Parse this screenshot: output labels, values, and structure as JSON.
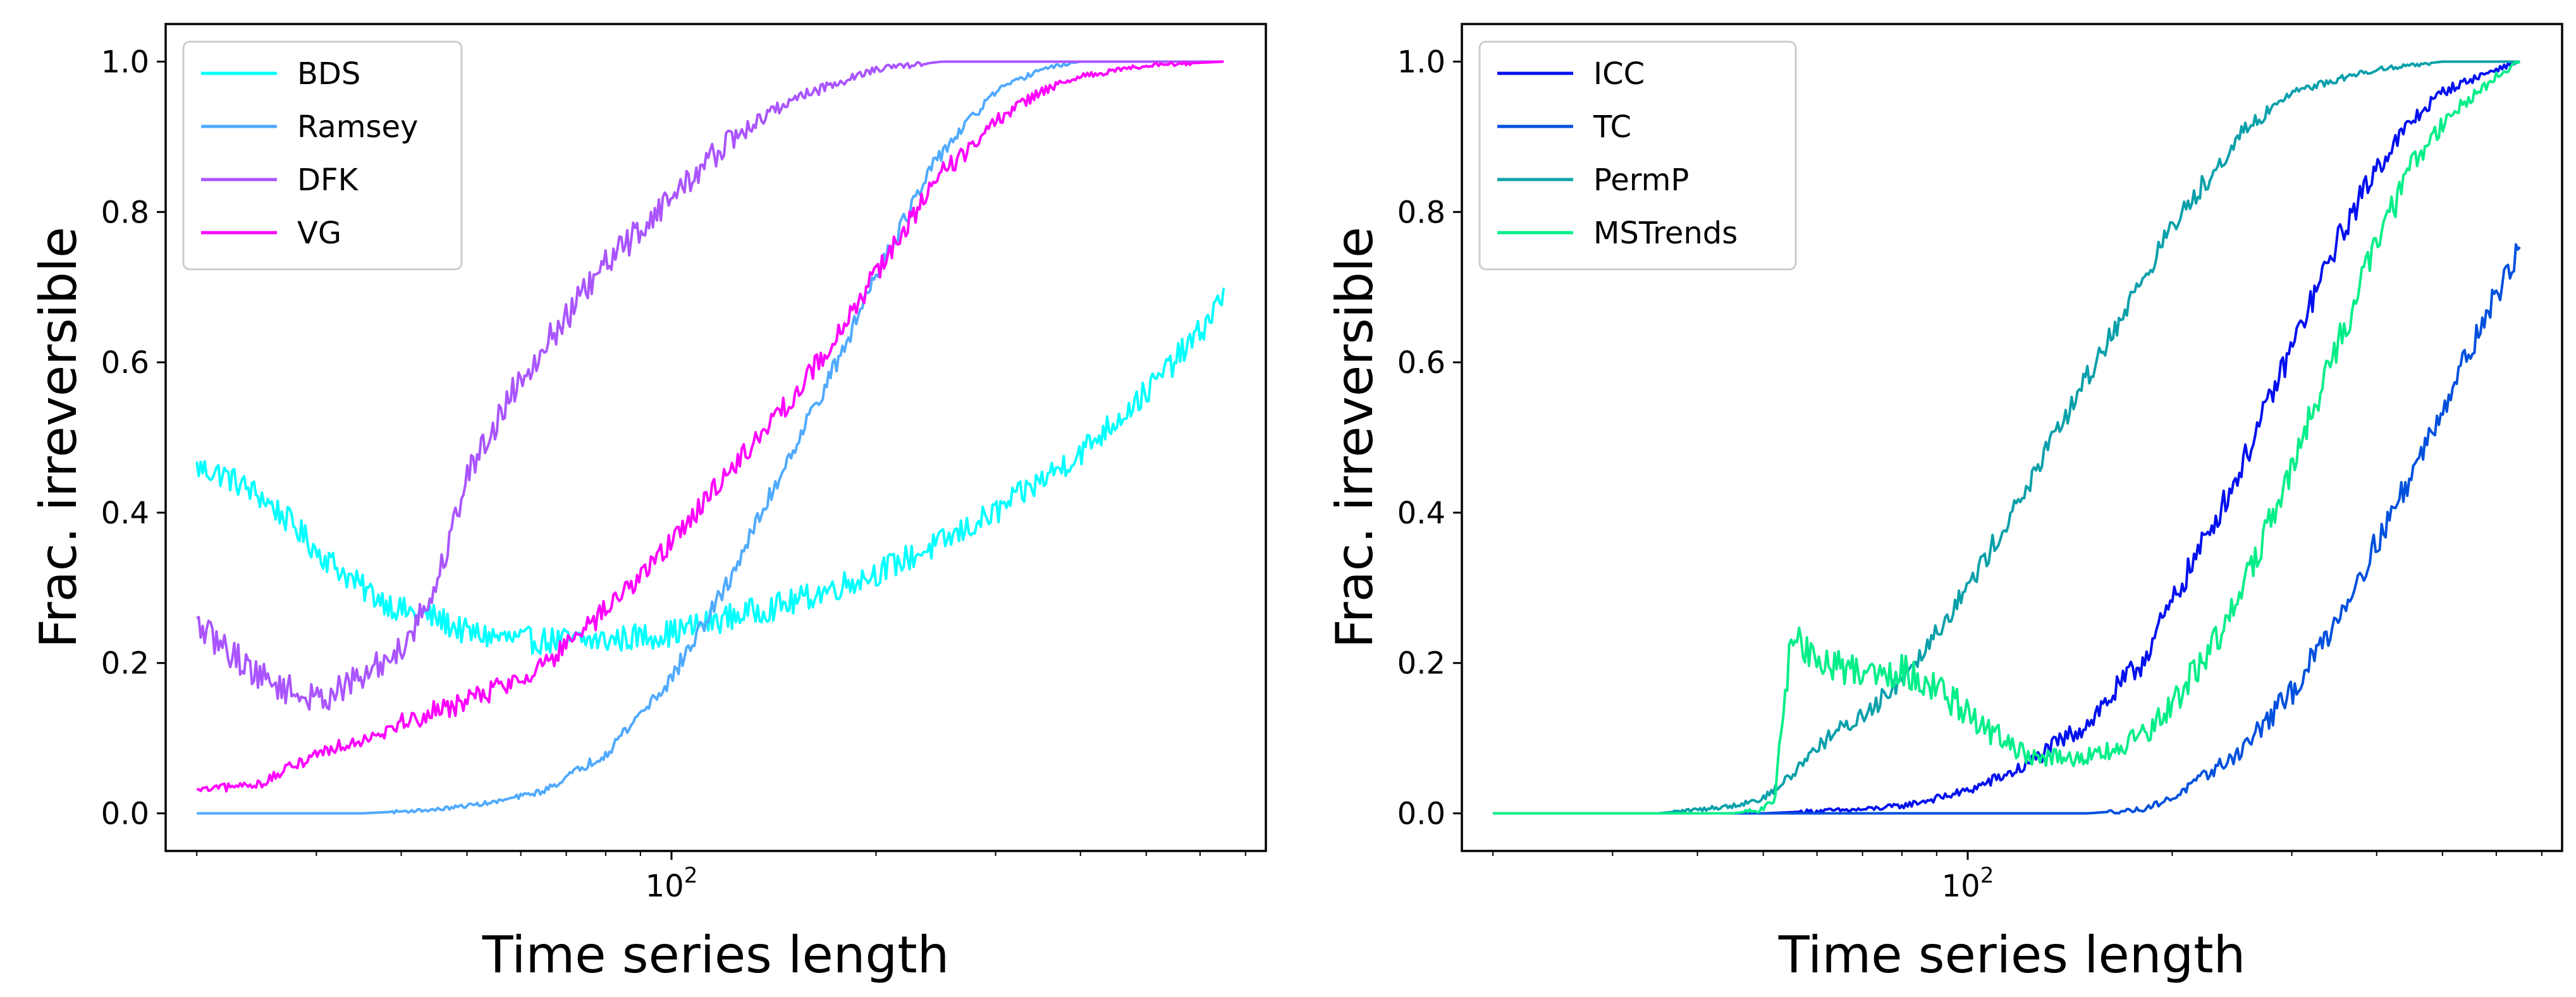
{
  "figure": {
    "title": ""
  },
  "chart_data": [
    {
      "type": "line",
      "panel": "left",
      "title": "",
      "xlabel": "Time series length",
      "ylabel": "Frac. irreversible",
      "xscale": "log",
      "xlim": [
        18,
        750
      ],
      "ylim": [
        -0.05,
        1.05
      ],
      "x_ticks": [
        {
          "value": 100,
          "base": "10",
          "exp": "2"
        }
      ],
      "yticks": [
        {
          "value": 0.0,
          "label": "0.0"
        },
        {
          "value": 0.2,
          "label": "0.2"
        },
        {
          "value": 0.4,
          "label": "0.4"
        },
        {
          "value": 0.6,
          "label": "0.6"
        },
        {
          "value": 0.8,
          "label": "0.8"
        },
        {
          "value": 1.0,
          "label": "1.0"
        }
      ],
      "grid": false,
      "legend_position": "top-left",
      "series": [
        {
          "name": "BDS",
          "color": "#00ffff",
          "noise": 0.018,
          "x": [
            20,
            22,
            25,
            28,
            30,
            35,
            40,
            45,
            50,
            60,
            70,
            80,
            100,
            120,
            150,
            200,
            250,
            300,
            400,
            500,
            600,
            650
          ],
          "y": [
            0.46,
            0.45,
            0.42,
            0.38,
            0.35,
            0.3,
            0.27,
            0.26,
            0.24,
            0.23,
            0.23,
            0.23,
            0.24,
            0.26,
            0.28,
            0.32,
            0.36,
            0.4,
            0.48,
            0.56,
            0.64,
            0.69
          ]
        },
        {
          "name": "Ramsey",
          "color": "#50aaff",
          "noise": 0.012,
          "x": [
            20,
            35,
            45,
            55,
            65,
            80,
            100,
            120,
            150,
            180,
            200,
            250,
            300,
            350,
            400,
            450,
            500,
            600,
            650
          ],
          "y": [
            0.0,
            0.0,
            0.005,
            0.015,
            0.03,
            0.08,
            0.18,
            0.3,
            0.48,
            0.62,
            0.72,
            0.88,
            0.96,
            0.99,
            1.0,
            1.0,
            1.0,
            1.0,
            1.0
          ]
        },
        {
          "name": "DFK",
          "color": "#aa55ff",
          "noise": 0.02,
          "x": [
            20,
            22,
            25,
            28,
            30,
            35,
            40,
            45,
            50,
            60,
            70,
            80,
            100,
            120,
            150,
            200,
            250,
            300,
            400,
            650
          ],
          "y": [
            0.25,
            0.22,
            0.18,
            0.16,
            0.15,
            0.18,
            0.22,
            0.3,
            0.45,
            0.58,
            0.66,
            0.73,
            0.82,
            0.89,
            0.95,
            0.99,
            1.0,
            1.0,
            1.0,
            1.0
          ]
        },
        {
          "name": "VG",
          "color": "#ff00ff",
          "noise": 0.015,
          "x": [
            20,
            25,
            30,
            35,
            40,
            50,
            60,
            70,
            80,
            100,
            120,
            150,
            180,
            200,
            250,
            300,
            350,
            400,
            500,
            650
          ],
          "y": [
            0.03,
            0.04,
            0.08,
            0.1,
            0.12,
            0.15,
            0.18,
            0.22,
            0.27,
            0.36,
            0.45,
            0.55,
            0.65,
            0.72,
            0.85,
            0.92,
            0.96,
            0.98,
            0.995,
            1.0
          ]
        }
      ]
    },
    {
      "type": "line",
      "panel": "right",
      "title": "",
      "xlabel": "Time series length",
      "ylabel": "Frac. irreversible",
      "xscale": "log",
      "xlim": [
        18,
        750
      ],
      "ylim": [
        -0.05,
        1.05
      ],
      "x_ticks": [
        {
          "value": 100,
          "base": "10",
          "exp": "2"
        }
      ],
      "yticks": [
        {
          "value": 0.0,
          "label": "0.0"
        },
        {
          "value": 0.2,
          "label": "0.2"
        },
        {
          "value": 0.4,
          "label": "0.4"
        },
        {
          "value": 0.6,
          "label": "0.6"
        },
        {
          "value": 0.8,
          "label": "0.8"
        },
        {
          "value": 1.0,
          "label": "1.0"
        }
      ],
      "grid": false,
      "legend_position": "top-left",
      "series": [
        {
          "name": "ICC",
          "color": "#0010ee",
          "noise": 0.018,
          "x": [
            20,
            40,
            50,
            60,
            70,
            80,
            90,
            100,
            120,
            150,
            180,
            200,
            250,
            300,
            350,
            400,
            450,
            500,
            600,
            650
          ],
          "y": [
            0.0,
            0.0,
            0.0,
            0.003,
            0.005,
            0.01,
            0.02,
            0.03,
            0.06,
            0.12,
            0.2,
            0.28,
            0.45,
            0.62,
            0.76,
            0.86,
            0.92,
            0.96,
            0.99,
            1.0
          ]
        },
        {
          "name": "TC",
          "color": "#0050dd",
          "noise": 0.018,
          "x": [
            20,
            100,
            150,
            180,
            200,
            250,
            300,
            350,
            400,
            450,
            500,
            550,
            600,
            650
          ],
          "y": [
            0.0,
            0.0,
            0.0,
            0.005,
            0.02,
            0.08,
            0.16,
            0.26,
            0.36,
            0.45,
            0.54,
            0.62,
            0.69,
            0.75
          ]
        },
        {
          "name": "PermP",
          "color": "#0aa0aa",
          "noise": 0.015,
          "x": [
            20,
            35,
            40,
            45,
            50,
            55,
            60,
            70,
            80,
            100,
            120,
            150,
            200,
            250,
            300,
            400,
            500,
            650
          ],
          "y": [
            0.0,
            0.0,
            0.005,
            0.01,
            0.02,
            0.05,
            0.09,
            0.13,
            0.18,
            0.3,
            0.42,
            0.58,
            0.78,
            0.9,
            0.96,
            0.99,
            1.0,
            1.0
          ]
        },
        {
          "name": "MSTrends",
          "color": "#00ee88",
          "noise": 0.022,
          "x": [
            20,
            40,
            45,
            50,
            52,
            55,
            60,
            70,
            80,
            90,
            100,
            120,
            140,
            160,
            180,
            200,
            250,
            300,
            350,
            400,
            450,
            500,
            600,
            650
          ],
          "y": [
            0.0,
            0.0,
            0.0,
            0.005,
            0.02,
            0.24,
            0.2,
            0.19,
            0.19,
            0.17,
            0.13,
            0.08,
            0.07,
            0.08,
            0.1,
            0.14,
            0.28,
            0.46,
            0.62,
            0.76,
            0.86,
            0.92,
            0.98,
            1.0
          ]
        }
      ]
    }
  ]
}
